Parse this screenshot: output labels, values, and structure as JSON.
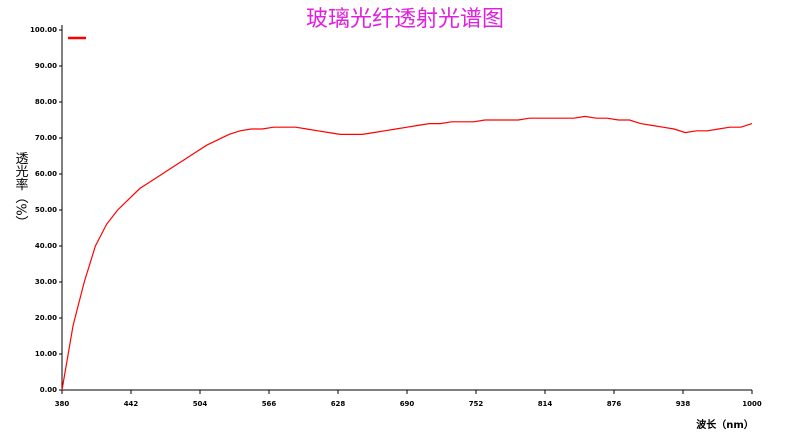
{
  "chart_data": {
    "type": "line",
    "title": "玻璃光纤透射光谱图",
    "xlabel": "波长（nm）",
    "ylabel": "透光率（%）",
    "legend": "upper left",
    "x": [
      380,
      390,
      400,
      410,
      420,
      430,
      440,
      450,
      460,
      470,
      480,
      490,
      500,
      510,
      520,
      530,
      540,
      550,
      560,
      570,
      580,
      590,
      600,
      610,
      620,
      630,
      640,
      650,
      660,
      670,
      680,
      690,
      700,
      710,
      720,
      730,
      740,
      750,
      760,
      770,
      780,
      790,
      800,
      810,
      820,
      830,
      840,
      850,
      860,
      870,
      880,
      890,
      900,
      910,
      920,
      930,
      940,
      950,
      960,
      970,
      980,
      990,
      1000
    ],
    "series": [
      {
        "color": "#ff0000",
        "values": [
          0,
          18,
          30,
          40,
          46,
          50,
          53,
          56,
          58,
          60,
          62,
          64,
          66,
          68,
          69.5,
          71,
          72,
          72.5,
          72.5,
          73,
          73,
          73,
          72.5,
          72,
          71.5,
          71,
          71,
          71,
          71.5,
          72,
          72.5,
          73,
          73.5,
          74,
          74,
          74.5,
          74.5,
          74.5,
          75,
          75,
          75,
          75,
          75.5,
          75.5,
          75.5,
          75.5,
          75.5,
          76,
          75.5,
          75.5,
          75,
          75,
          74,
          73.5,
          73,
          72.5,
          71.5,
          72,
          72,
          72.5,
          73,
          73,
          74
        ]
      }
    ],
    "xlim": [
      380,
      1000
    ],
    "xticks": [
      380,
      442,
      504,
      566,
      628,
      690,
      752,
      814,
      876,
      938,
      1000
    ],
    "ylim": [
      0,
      100
    ],
    "yticks": [
      {
        "value": 0,
        "label": "0.00"
      },
      {
        "value": 10,
        "label": "10.00"
      },
      {
        "value": 20,
        "label": "20.00"
      },
      {
        "value": 30,
        "label": "30.00"
      },
      {
        "value": 40,
        "label": "40.00"
      },
      {
        "value": 50,
        "label": "50.00"
      },
      {
        "value": 60,
        "label": "60.00"
      },
      {
        "value": 70,
        "label": "70.00"
      },
      {
        "value": 80,
        "label": "80.00"
      },
      {
        "value": 90,
        "label": "90.00"
      },
      {
        "value": 100,
        "label": "100.00"
      }
    ],
    "grid": false,
    "title_color": "#e020e0"
  }
}
